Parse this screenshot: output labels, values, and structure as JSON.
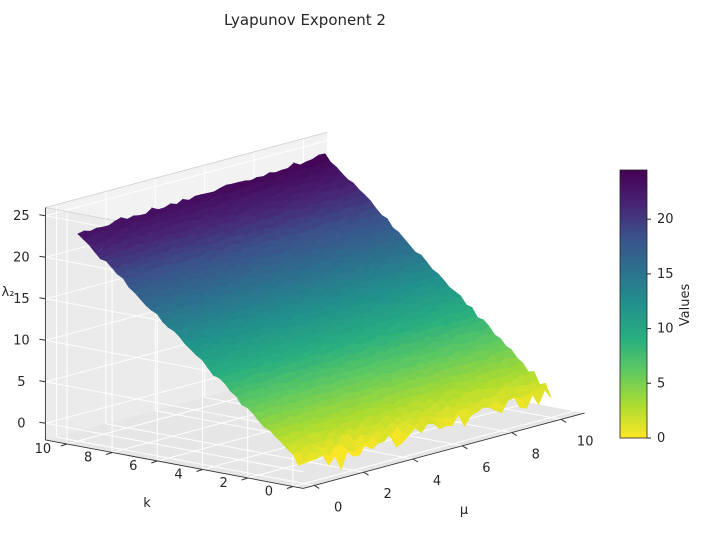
{
  "chart_data": {
    "type": "surface",
    "title": "Lyapunov Exponent 2",
    "xlabel": "μ",
    "ylabel": "k",
    "zlabel": "λ₂",
    "x_ticks": [
      0,
      2,
      4,
      6,
      8,
      10
    ],
    "y_ticks": [
      0,
      2,
      4,
      6,
      8,
      10
    ],
    "z_ticks": [
      0,
      5,
      10,
      15,
      20,
      25
    ],
    "xlim": [
      0,
      10
    ],
    "ylim": [
      0,
      10
    ],
    "zlim": [
      -2,
      26
    ],
    "colormap": "viridis_r",
    "colorbar": {
      "label": "Values",
      "ticks": [
        0,
        5,
        10,
        15,
        20
      ],
      "range": [
        0,
        24.5
      ]
    },
    "grid": true,
    "surface_model": "approximately linear in μ and k with small noise",
    "corners": [
      {
        "mu": 0,
        "k": 0,
        "value": 0
      },
      {
        "mu": 10,
        "k": 0,
        "value": 1
      },
      {
        "mu": 0,
        "k": 10,
        "value": 23
      },
      {
        "mu": 10,
        "k": 10,
        "value": 24.5
      }
    ],
    "annotations": [
      {
        "mu": 1.5,
        "k": 0,
        "value": -1.5,
        "note": "dip spike near front edge"
      }
    ]
  }
}
